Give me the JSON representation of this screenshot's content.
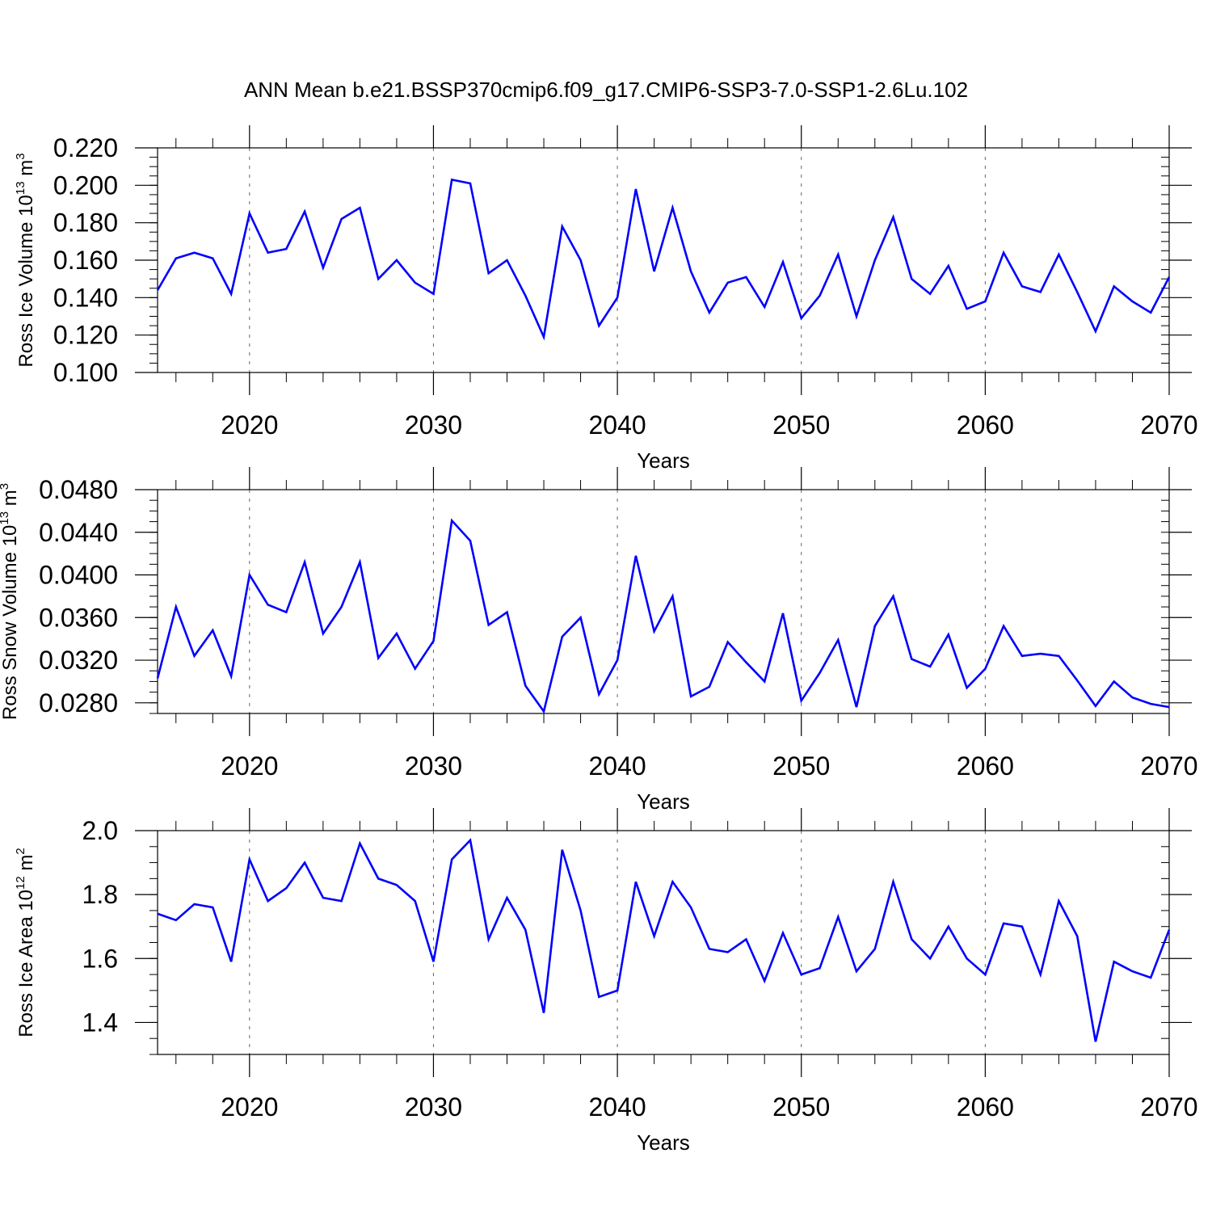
{
  "title": "ANN Mean b.e21.BSSP370cmip6.f09_g17.CMIP6-SSP3-7.0-SSP1-2.6Lu.102",
  "series_color": "#0000ff",
  "chart_data": [
    {
      "type": "line",
      "ylabel": {
        "text": "Ross Ice Volume 10",
        "exp": "13",
        "unit": " m",
        "unit_exp": "3"
      },
      "xlabel": "Years",
      "xlim": [
        2015,
        2070
      ],
      "ylim": [
        0.1,
        0.22
      ],
      "yticks": [
        "0.220",
        "0.200",
        "0.180",
        "0.160",
        "0.140",
        "0.120",
        "0.100"
      ],
      "ytick_values": [
        0.22,
        0.2,
        0.18,
        0.16,
        0.14,
        0.12,
        0.1
      ],
      "yminor": 0.005,
      "xticks": [
        "2020",
        "2030",
        "2040",
        "2050",
        "2060",
        "2070"
      ],
      "xtick_values": [
        2020,
        2030,
        2040,
        2050,
        2060,
        2070
      ],
      "x": [
        2015,
        2016,
        2017,
        2018,
        2019,
        2020,
        2021,
        2022,
        2023,
        2024,
        2025,
        2026,
        2027,
        2028,
        2029,
        2030,
        2031,
        2032,
        2033,
        2034,
        2035,
        2036,
        2037,
        2038,
        2039,
        2040,
        2041,
        2042,
        2043,
        2044,
        2045,
        2046,
        2047,
        2048,
        2049,
        2050,
        2051,
        2052,
        2053,
        2054,
        2055,
        2056,
        2057,
        2058,
        2059,
        2060,
        2061,
        2062,
        2063,
        2064,
        2065,
        2066,
        2067,
        2068,
        2069,
        2070
      ],
      "y": [
        0.144,
        0.161,
        0.164,
        0.161,
        0.142,
        0.185,
        0.164,
        0.166,
        0.186,
        0.156,
        0.182,
        0.188,
        0.15,
        0.16,
        0.148,
        0.142,
        0.203,
        0.201,
        0.153,
        0.16,
        0.141,
        0.119,
        0.178,
        0.16,
        0.125,
        0.14,
        0.198,
        0.154,
        0.188,
        0.154,
        0.132,
        0.148,
        0.151,
        0.135,
        0.159,
        0.129,
        0.141,
        0.163,
        0.13,
        0.16,
        0.183,
        0.15,
        0.142,
        0.157,
        0.134,
        0.138,
        0.164,
        0.146,
        0.143,
        0.163,
        0.143,
        0.122,
        0.146,
        0.138,
        0.132,
        0.151
      ]
    },
    {
      "type": "line",
      "ylabel": {
        "text": "Ross Snow Volume 10",
        "exp": "13",
        "unit": " m",
        "unit_exp": "3"
      },
      "xlabel": "Years",
      "xlim": [
        2015,
        2070
      ],
      "ylim": [
        0.027,
        0.048
      ],
      "yticks": [
        "0.0480",
        "0.0440",
        "0.0400",
        "0.0360",
        "0.0320",
        "0.0280"
      ],
      "ytick_values": [
        0.048,
        0.044,
        0.04,
        0.036,
        0.032,
        0.028
      ],
      "yminor": 0.001,
      "xticks": [
        "2020",
        "2030",
        "2040",
        "2050",
        "2060",
        "2070"
      ],
      "xtick_values": [
        2020,
        2030,
        2040,
        2050,
        2060,
        2070
      ],
      "x": [
        2015,
        2016,
        2017,
        2018,
        2019,
        2020,
        2021,
        2022,
        2023,
        2024,
        2025,
        2026,
        2027,
        2028,
        2029,
        2030,
        2031,
        2032,
        2033,
        2034,
        2035,
        2036,
        2037,
        2038,
        2039,
        2040,
        2041,
        2042,
        2043,
        2044,
        2045,
        2046,
        2047,
        2048,
        2049,
        2050,
        2051,
        2052,
        2053,
        2054,
        2055,
        2056,
        2057,
        2058,
        2059,
        2060,
        2061,
        2062,
        2063,
        2064,
        2065,
        2066,
        2067,
        2068,
        2069,
        2070
      ],
      "y": [
        0.0303,
        0.037,
        0.0324,
        0.0348,
        0.0305,
        0.04,
        0.0372,
        0.0365,
        0.0412,
        0.0345,
        0.037,
        0.0412,
        0.0322,
        0.0345,
        0.0312,
        0.0338,
        0.0451,
        0.0432,
        0.0353,
        0.0365,
        0.0296,
        0.0272,
        0.0342,
        0.036,
        0.0288,
        0.032,
        0.0418,
        0.0347,
        0.038,
        0.0286,
        0.0295,
        0.0337,
        0.0318,
        0.03,
        0.0364,
        0.0282,
        0.0308,
        0.0339,
        0.0276,
        0.0352,
        0.038,
        0.0321,
        0.0314,
        0.0344,
        0.0294,
        0.0312,
        0.0352,
        0.0324,
        0.0326,
        0.0324,
        0.0301,
        0.0277,
        0.03,
        0.0285,
        0.0279,
        0.0276
      ]
    },
    {
      "type": "line",
      "ylabel": {
        "text": "Ross Ice Area 10",
        "exp": "12",
        "unit": " m",
        "unit_exp": "2"
      },
      "xlabel": "Years",
      "xlim": [
        2015,
        2070
      ],
      "ylim": [
        1.3,
        2.0
      ],
      "yticks": [
        "2.0",
        "1.8",
        "1.6",
        "1.4"
      ],
      "ytick_values": [
        2.0,
        1.8,
        1.6,
        1.4
      ],
      "yminor": 0.05,
      "xticks": [
        "2020",
        "2030",
        "2040",
        "2050",
        "2060",
        "2070"
      ],
      "xtick_values": [
        2020,
        2030,
        2040,
        2050,
        2060,
        2070
      ],
      "x": [
        2015,
        2016,
        2017,
        2018,
        2019,
        2020,
        2021,
        2022,
        2023,
        2024,
        2025,
        2026,
        2027,
        2028,
        2029,
        2030,
        2031,
        2032,
        2033,
        2034,
        2035,
        2036,
        2037,
        2038,
        2039,
        2040,
        2041,
        2042,
        2043,
        2044,
        2045,
        2046,
        2047,
        2048,
        2049,
        2050,
        2051,
        2052,
        2053,
        2054,
        2055,
        2056,
        2057,
        2058,
        2059,
        2060,
        2061,
        2062,
        2063,
        2064,
        2065,
        2066,
        2067,
        2068,
        2069,
        2070
      ],
      "y": [
        1.74,
        1.72,
        1.77,
        1.76,
        1.59,
        1.91,
        1.78,
        1.82,
        1.9,
        1.79,
        1.78,
        1.96,
        1.85,
        1.83,
        1.78,
        1.59,
        1.91,
        1.97,
        1.66,
        1.79,
        1.69,
        1.43,
        1.94,
        1.75,
        1.48,
        1.5,
        1.84,
        1.67,
        1.84,
        1.76,
        1.63,
        1.62,
        1.66,
        1.53,
        1.68,
        1.55,
        1.57,
        1.73,
        1.56,
        1.63,
        1.84,
        1.66,
        1.6,
        1.7,
        1.6,
        1.55,
        1.71,
        1.7,
        1.55,
        1.78,
        1.67,
        1.34,
        1.59,
        1.56,
        1.54,
        1.69
      ]
    }
  ]
}
